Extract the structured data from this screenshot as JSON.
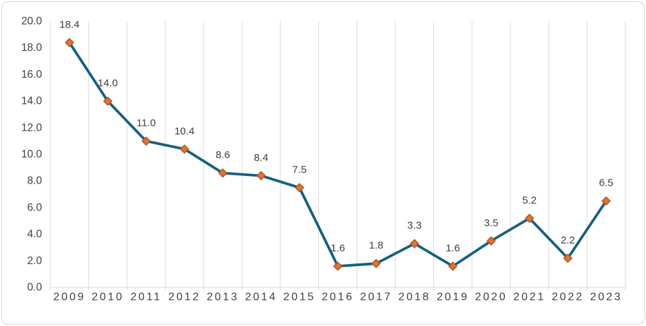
{
  "chart_data": {
    "type": "line",
    "title": "",
    "xlabel": "",
    "ylabel": "",
    "categories": [
      "2009",
      "2010",
      "2011",
      "2012",
      "2013",
      "2014",
      "2015",
      "2016",
      "2017",
      "2018",
      "2019",
      "2020",
      "2021",
      "2022",
      "2023"
    ],
    "series": [
      {
        "name": "",
        "values": [
          18.4,
          14.0,
          11.0,
          10.4,
          8.6,
          8.4,
          7.5,
          1.6,
          1.8,
          3.3,
          1.6,
          3.5,
          5.2,
          2.2,
          6.5
        ],
        "data_labels": [
          "18.4",
          "14.0",
          "11.0",
          "10.4",
          "8.6",
          "8.4",
          "7.5",
          "1.6",
          "1.8",
          "3.3",
          "1.6",
          "3.5",
          "5.2",
          "2.2",
          "6.5"
        ]
      }
    ],
    "ylim": [
      0,
      20
    ],
    "ytick_step": 2,
    "ytick_labels": [
      "0.0",
      "2.0",
      "4.0",
      "6.0",
      "8.0",
      "10.0",
      "12.0",
      "14.0",
      "16.0",
      "18.0",
      "20.0"
    ],
    "grid": "vertical-only",
    "legend": "none",
    "colors": {
      "line": "#156082",
      "marker_fill": "#E97132",
      "marker_stroke": "#AE5A21",
      "gridline": "#D9D9D9",
      "axis_line": "#D9D9D9",
      "axis_text": "#404040",
      "data_label_text": "#404040",
      "background": "#FFFFFF",
      "frame_border": "#D6D6D6"
    },
    "marker": {
      "shape": "diamond",
      "size": 11.5
    }
  }
}
